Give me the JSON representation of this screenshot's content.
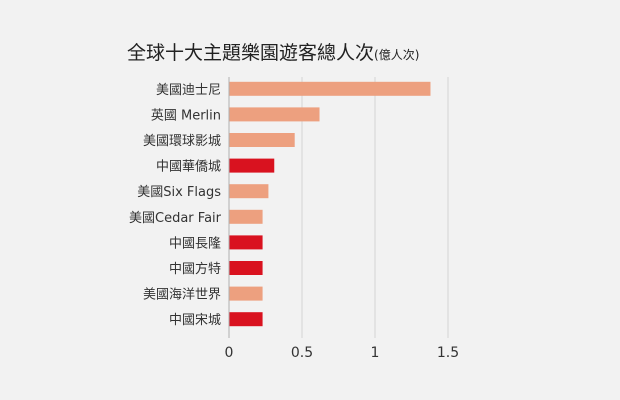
{
  "chart_data": {
    "type": "bar",
    "orientation": "horizontal",
    "title": "全球十大主題樂園遊客總人次",
    "title_unit": "(億人次)",
    "categories": [
      "美國迪士尼",
      "英國 Merlin",
      "美國環球影城",
      "中國華僑城",
      "美國Six Flags",
      "美國Cedar Fair",
      "中國長隆",
      "中國方特",
      "美國海洋世界",
      "中國宋城"
    ],
    "values": [
      1.38,
      0.62,
      0.45,
      0.31,
      0.27,
      0.23,
      0.23,
      0.23,
      0.23,
      0.23
    ],
    "groups": [
      "us",
      "other",
      "us",
      "china",
      "us",
      "us",
      "china",
      "china",
      "us",
      "china"
    ],
    "xlim": [
      0,
      1.5
    ],
    "xticks": [
      "0",
      "0.5",
      "1",
      "1.5"
    ],
    "xtick_values": [
      0,
      0.5,
      1,
      1.5
    ],
    "grid": true,
    "colors": {
      "us": "#eda07f",
      "other": "#eda07f",
      "china": "#d9121f",
      "grid": "#d4d4d4",
      "axis": "#b0b0b0",
      "background": "#f2f2f2"
    }
  }
}
